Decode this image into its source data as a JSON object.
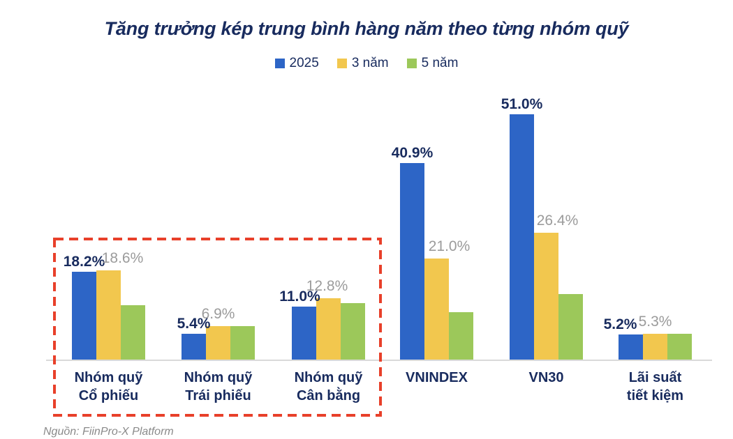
{
  "title": "Tăng trưởng kép trung bình hàng năm theo từng nhóm quỹ",
  "source_note": "Nguồn: FiinPro-X Platform",
  "colors": {
    "navy_text": "#182b5e",
    "gray_label": "#9b9b9b",
    "axis_line": "#d9d9d9",
    "series_2025": "#2d65c6",
    "series_3nam": "#f2c74e",
    "series_5nam": "#9cc85a",
    "highlight_box": "#e8402a"
  },
  "legend": [
    {
      "label": "2025",
      "color": "#2d65c6"
    },
    {
      "label": "3 năm",
      "color": "#f2c74e"
    },
    {
      "label": "5 năm",
      "color": "#9cc85a"
    }
  ],
  "chart_data": {
    "type": "bar",
    "title": "Tăng trưởng kép trung bình hàng năm theo từng nhóm quỹ",
    "categories": [
      "Nhóm quỹ Cổ phiếu",
      "Nhóm quỹ Trái phiếu",
      "Nhóm quỹ Cân bằng",
      "VNINDEX",
      "VN30",
      "Lãi suất tiết kiệm"
    ],
    "category_lines": [
      [
        "Nhóm quỹ",
        "Cổ phiếu"
      ],
      [
        "Nhóm quỹ",
        "Trái phiếu"
      ],
      [
        "Nhóm quỹ",
        "Cân bằng"
      ],
      [
        "VNINDEX"
      ],
      [
        "VN30"
      ],
      [
        "Lãi suất",
        "tiết kiệm"
      ]
    ],
    "category_slugs": [
      "co-phieu",
      "trai-phieu",
      "can-bang",
      "vnindex",
      "vn30",
      "lai-suat"
    ],
    "series": [
      {
        "name": "2025",
        "slug": "2025",
        "color": "#2d65c6",
        "values": [
          18.2,
          5.4,
          11.0,
          40.9,
          51.0,
          5.2
        ],
        "labels": [
          "18.2%",
          "5.4%",
          "11.0%",
          "40.9%",
          "51.0%",
          "5.2%"
        ],
        "label_style": "navy-bold"
      },
      {
        "name": "3 năm",
        "slug": "3nam",
        "color": "#f2c74e",
        "values": [
          18.6,
          6.9,
          12.8,
          21.0,
          26.4,
          5.3
        ],
        "labels": [
          "18.6%",
          "6.9%",
          "12.8%",
          "21.0%",
          "26.4%",
          "5.3%"
        ],
        "label_style": "gray"
      },
      {
        "name": "5 năm",
        "slug": "5nam",
        "color": "#9cc85a",
        "values": [
          11.3,
          6.9,
          11.8,
          9.9,
          13.6,
          5.3
        ],
        "labels": [
          "",
          "",
          "",
          "",
          "",
          ""
        ],
        "label_style": "none"
      }
    ],
    "ylim": [
      0,
      55
    ],
    "unit": "%",
    "grid": false,
    "legend_position": "top-center",
    "highlighted_categories": [
      0,
      1,
      2
    ],
    "highlight_note": "first three fund groups enclosed in red dashed box"
  }
}
